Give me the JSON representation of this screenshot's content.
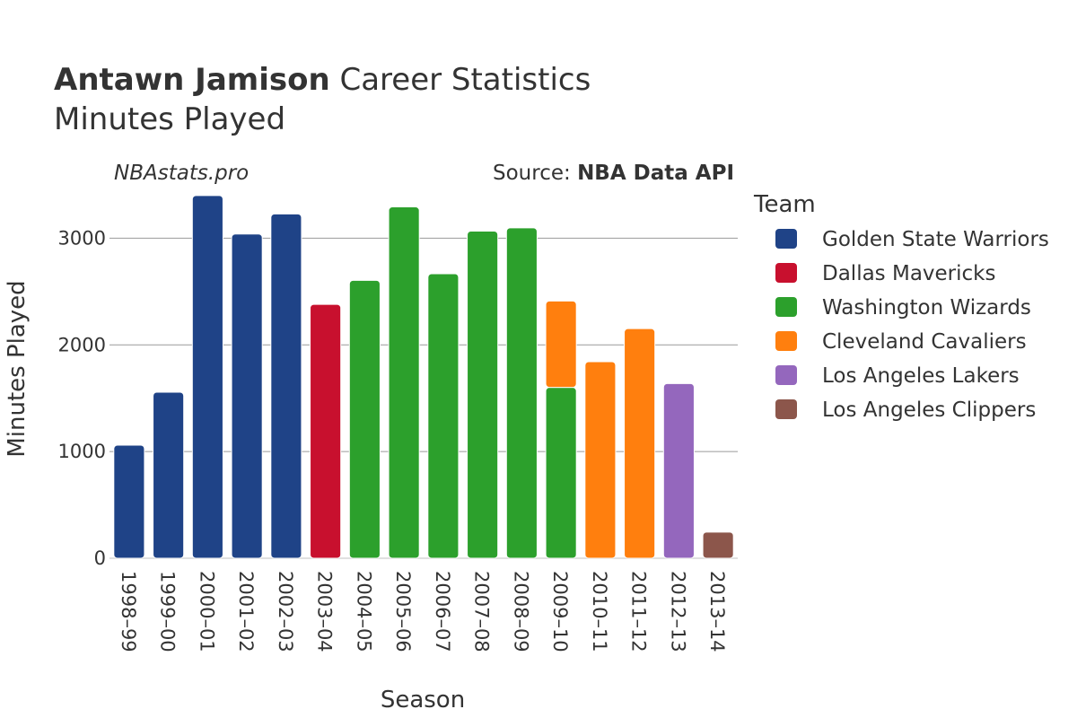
{
  "title": {
    "player": "Antawn Jamison",
    "suffix": " Career Statistics",
    "subtitle": "Minutes Played"
  },
  "watermark": "NBAstats.pro",
  "source": {
    "prefix": "Source: ",
    "name": "NBA Data API"
  },
  "legend": {
    "title": "Team"
  },
  "chart_data": {
    "type": "bar",
    "stacked": true,
    "xlabel": "Season",
    "ylabel": "Minutes Played",
    "ylim": [
      0,
      3550
    ],
    "yticks": [
      0,
      1000,
      2000,
      3000
    ],
    "grid": true,
    "legend_position": "right",
    "categories": [
      "1998–99",
      "1999–00",
      "2000–01",
      "2001–02",
      "2002–03",
      "2003–04",
      "2004–05",
      "2005–06",
      "2006–07",
      "2007–08",
      "2008–09",
      "2009–10",
      "2010–11",
      "2011–12",
      "2012–13",
      "2013–14"
    ],
    "series": [
      {
        "name": "Golden State Warriors",
        "color": "#1f4387",
        "values": [
          1060,
          1556,
          3400,
          3039,
          3227,
          null,
          null,
          null,
          null,
          null,
          null,
          null,
          null,
          null,
          null,
          null
        ]
      },
      {
        "name": "Dallas Mavericks",
        "color": "#c8102e",
        "values": [
          null,
          null,
          null,
          null,
          null,
          2380,
          null,
          null,
          null,
          null,
          null,
          null,
          null,
          null,
          null,
          null
        ]
      },
      {
        "name": "Washington Wizards",
        "color": "#2ca02c",
        "values": [
          null,
          null,
          null,
          null,
          null,
          null,
          2605,
          3293,
          2667,
          3066,
          3097,
          1601,
          null,
          null,
          null,
          null
        ]
      },
      {
        "name": "Cleveland Cavaliers",
        "color": "#ff7f0e",
        "values": [
          null,
          null,
          null,
          null,
          null,
          null,
          null,
          null,
          null,
          null,
          null,
          810,
          1842,
          2152,
          null,
          null
        ]
      },
      {
        "name": "Los Angeles Lakers",
        "color": "#9467bd",
        "values": [
          null,
          null,
          null,
          null,
          null,
          null,
          null,
          null,
          null,
          null,
          null,
          null,
          null,
          null,
          1637,
          null
        ]
      },
      {
        "name": "Los Angeles Clippers",
        "color": "#8c564b",
        "values": [
          null,
          null,
          null,
          null,
          null,
          null,
          null,
          null,
          null,
          null,
          null,
          null,
          null,
          null,
          null,
          245
        ]
      }
    ]
  }
}
